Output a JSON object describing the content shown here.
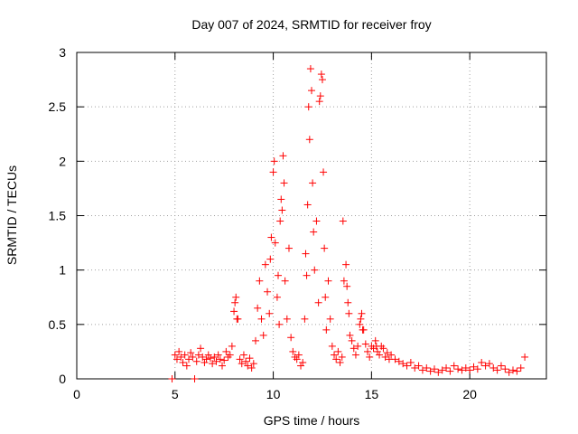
{
  "chart_data": {
    "type": "scatter",
    "title": "Day 007 of 2024, SRMTID for receiver froy",
    "xlabel": "GPS time / hours",
    "ylabel": "SRMTID / TECUs",
    "xlim": [
      0,
      23.9
    ],
    "ylim": [
      0,
      3
    ],
    "x_ticks": [
      0,
      5,
      10,
      15,
      20
    ],
    "x_tick_labels": [
      "0",
      "5",
      "10",
      "15",
      "20"
    ],
    "y_ticks": [
      0,
      0.5,
      1,
      1.5,
      2,
      2.5,
      3
    ],
    "y_tick_labels": [
      "0",
      "0.5",
      "1",
      "1.5",
      "2",
      "2.5",
      "3"
    ],
    "grid": true,
    "marker": "+",
    "colors": {
      "points": "#ff0000",
      "axes": "#000000",
      "grid": "#a0a0a0"
    },
    "series": [
      {
        "name": "SRMTID",
        "x": [
          4.85,
          6.0,
          5.0,
          5.1,
          5.2,
          5.3,
          5.4,
          5.5,
          5.6,
          5.7,
          5.8,
          5.9,
          6.1,
          6.2,
          6.3,
          6.4,
          6.5,
          6.6,
          6.7,
          6.8,
          6.9,
          7.0,
          7.1,
          7.2,
          7.3,
          7.4,
          7.5,
          7.6,
          7.7,
          7.8,
          7.9,
          8.0,
          8.1,
          8.2,
          8.3,
          8.4,
          8.5,
          8.6,
          8.7,
          8.8,
          8.9,
          9.0,
          9.1,
          9.2,
          9.3,
          9.4,
          9.5,
          9.6,
          9.7,
          9.8,
          9.9,
          10.0,
          10.05,
          10.1,
          10.2,
          10.3,
          10.4,
          10.5,
          10.6,
          10.7,
          10.8,
          10.9,
          11.0,
          11.1,
          11.2,
          11.3,
          11.4,
          11.5,
          11.6,
          11.7,
          11.75,
          11.8,
          11.9,
          12.0,
          12.1,
          12.2,
          12.3,
          12.4,
          12.45,
          12.5,
          12.6,
          12.7,
          12.8,
          12.9,
          13.0,
          13.1,
          13.2,
          13.3,
          13.4,
          13.5,
          13.6,
          13.7,
          13.8,
          13.9,
          14.0,
          14.1,
          14.2,
          14.3,
          14.4,
          14.5,
          14.6,
          14.7,
          14.8,
          14.9,
          15.0,
          15.1,
          15.2,
          15.3,
          15.4,
          15.5,
          15.6,
          15.7,
          15.8,
          15.9,
          16.0,
          16.2,
          16.4,
          16.6,
          16.8,
          17.0,
          17.2,
          17.4,
          17.6,
          17.8,
          18.0,
          18.2,
          18.4,
          18.6,
          18.8,
          19.0,
          19.2,
          19.4,
          19.6,
          19.8,
          20.0,
          20.2,
          20.4,
          20.6,
          20.8,
          21.0,
          21.2,
          21.4,
          21.6,
          21.8,
          22.0,
          22.2,
          22.4,
          22.6,
          22.8,
          8.05,
          8.15,
          9.85,
          10.25,
          10.35,
          10.45,
          10.55,
          11.65,
          11.85,
          11.95,
          12.05,
          12.35,
          12.55,
          12.65,
          13.55,
          13.75,
          13.85,
          14.45,
          14.55,
          15.25
        ],
        "y": [
          0.0,
          0.0,
          0.22,
          0.18,
          0.25,
          0.2,
          0.15,
          0.22,
          0.12,
          0.18,
          0.24,
          0.2,
          0.16,
          0.22,
          0.28,
          0.2,
          0.15,
          0.18,
          0.22,
          0.19,
          0.14,
          0.2,
          0.16,
          0.22,
          0.18,
          0.12,
          0.17,
          0.25,
          0.2,
          0.22,
          0.3,
          0.62,
          0.75,
          0.55,
          0.18,
          0.14,
          0.22,
          0.16,
          0.12,
          0.19,
          0.1,
          0.14,
          0.35,
          0.65,
          0.9,
          0.55,
          0.4,
          1.05,
          0.8,
          0.6,
          1.3,
          1.9,
          2.0,
          1.25,
          0.75,
          0.5,
          1.65,
          2.05,
          0.9,
          0.55,
          1.2,
          0.38,
          0.25,
          0.2,
          0.18,
          0.22,
          0.12,
          0.15,
          0.55,
          0.95,
          1.6,
          2.5,
          2.85,
          1.8,
          1.0,
          1.45,
          0.7,
          2.6,
          2.8,
          2.75,
          1.2,
          0.45,
          0.9,
          0.55,
          0.3,
          0.22,
          0.18,
          0.25,
          0.15,
          0.2,
          0.9,
          1.05,
          0.7,
          0.4,
          0.35,
          0.28,
          0.22,
          0.3,
          0.5,
          0.6,
          0.45,
          0.32,
          0.25,
          0.2,
          0.3,
          0.28,
          0.35,
          0.25,
          0.22,
          0.3,
          0.28,
          0.2,
          0.24,
          0.18,
          0.22,
          0.18,
          0.16,
          0.14,
          0.12,
          0.15,
          0.1,
          0.12,
          0.08,
          0.1,
          0.07,
          0.09,
          0.06,
          0.08,
          0.1,
          0.07,
          0.12,
          0.09,
          0.08,
          0.1,
          0.08,
          0.11,
          0.09,
          0.15,
          0.12,
          0.14,
          0.1,
          0.08,
          0.12,
          0.09,
          0.06,
          0.08,
          0.07,
          0.1,
          0.2,
          0.7,
          0.55,
          1.1,
          0.95,
          1.45,
          1.55,
          1.8,
          1.15,
          2.2,
          2.65,
          1.35,
          2.55,
          1.9,
          0.75,
          1.45,
          0.85,
          0.6,
          0.55,
          0.45,
          0.3
        ]
      }
    ]
  }
}
